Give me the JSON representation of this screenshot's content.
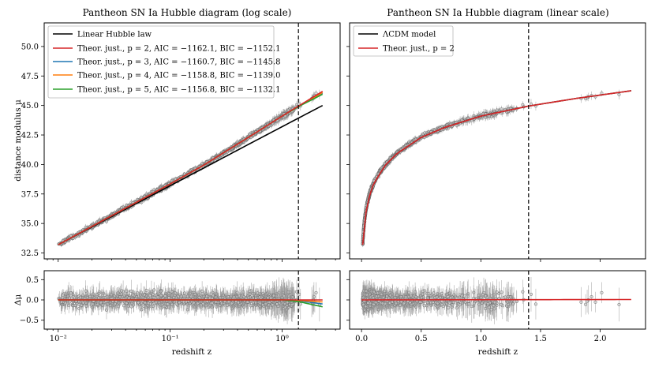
{
  "chart_data": [
    {
      "id": "log_main",
      "type": "scatter",
      "title": "Pantheon SN Ia Hubble diagram (log scale)",
      "xscale": "log",
      "xlim": [
        0.0075,
        3.3
      ],
      "ylim": [
        32.0,
        52.0
      ],
      "ylabel": "distance modulus μ",
      "yticks": [
        32.5,
        35.0,
        37.5,
        40.0,
        42.5,
        45.0,
        47.5,
        50.0
      ],
      "ytick_labels": [
        "32.5",
        "35.0",
        "37.5",
        "40.0",
        "42.5",
        "45.0",
        "47.5",
        "50.0"
      ],
      "vline_x": 1.4,
      "legend_position": "top-left",
      "legend": [
        {
          "label": "Linear Hubble law",
          "color": "#000000"
        },
        {
          "label": "Theor. just., p = 2, AIC = −1162.1, BIC = −1152.1",
          "color": "#d62728"
        },
        {
          "label": "Theor. just., p = 3, AIC = −1160.7, BIC = −1145.8",
          "color": "#1f77b4"
        },
        {
          "label": "Theor. just., p = 4, AIC = −1158.8, BIC = −1139.0",
          "color": "#ff7f0e"
        },
        {
          "label": "Theor. just., p = 5, AIC = −1156.8, BIC = −1132.1",
          "color": "#2ca02c"
        }
      ],
      "series": [
        {
          "name": "Linear Hubble law",
          "x": [
            0.01,
            0.02,
            0.05,
            0.1,
            0.2,
            0.5,
            1.0,
            1.4,
            2.3
          ],
          "y": [
            33.2,
            34.7,
            36.7,
            38.2,
            39.7,
            41.7,
            43.2,
            43.93,
            45.0
          ]
        },
        {
          "name": "p = 2",
          "x": [
            0.01,
            0.02,
            0.05,
            0.1,
            0.2,
            0.5,
            1.0,
            1.4,
            2.3
          ],
          "y": [
            33.2,
            34.75,
            36.8,
            38.35,
            39.95,
            42.3,
            44.1,
            44.95,
            46.2
          ]
        },
        {
          "name": "p = 3",
          "x": [
            0.01,
            0.02,
            0.05,
            0.1,
            0.2,
            0.5,
            1.0,
            1.4,
            2.3
          ],
          "y": [
            33.2,
            34.75,
            36.8,
            38.35,
            39.95,
            42.3,
            44.1,
            44.93,
            46.05
          ]
        },
        {
          "name": "p = 4",
          "x": [
            0.01,
            0.02,
            0.05,
            0.1,
            0.2,
            0.5,
            1.0,
            1.4,
            2.3
          ],
          "y": [
            33.2,
            34.75,
            36.8,
            38.35,
            39.95,
            42.3,
            44.1,
            44.94,
            46.1
          ]
        },
        {
          "name": "p = 5",
          "x": [
            0.01,
            0.02,
            0.05,
            0.1,
            0.2,
            0.5,
            1.0,
            1.4,
            2.3
          ],
          "y": [
            33.2,
            34.75,
            36.8,
            38.35,
            39.95,
            42.3,
            44.1,
            44.9,
            45.95
          ]
        }
      ],
      "data_points": {
        "z_min": 0.01,
        "z_max": 2.26,
        "count": 1048,
        "scatter_sigma": 0.15
      }
    },
    {
      "id": "log_resid",
      "type": "scatter",
      "xscale": "log",
      "xlim": [
        0.0075,
        3.3
      ],
      "ylim": [
        -0.72,
        0.72
      ],
      "xlabel": "redshift z",
      "ylabel": "Δμ",
      "yticks": [
        -0.5,
        0.0,
        0.5
      ],
      "ytick_labels": [
        "−0.5",
        "0.0",
        "0.5"
      ],
      "xticks": [
        0.01,
        0.1,
        1.0
      ],
      "xtick_labels": [
        "10⁻²",
        "10⁻¹",
        "10⁰"
      ],
      "vline_x": 1.4,
      "series": [
        {
          "name": "p = 2",
          "x": [
            0.01,
            1.0,
            2.3
          ],
          "y": [
            0.0,
            0.0,
            0.0
          ]
        },
        {
          "name": "p = 3",
          "x": [
            0.01,
            1.0,
            1.4,
            2.3
          ],
          "y": [
            0.0,
            0.0,
            -0.02,
            -0.1
          ]
        },
        {
          "name": "p = 4",
          "x": [
            0.01,
            1.0,
            1.4,
            2.3
          ],
          "y": [
            0.0,
            0.0,
            -0.01,
            -0.05
          ]
        },
        {
          "name": "p = 5",
          "x": [
            0.01,
            1.0,
            1.4,
            2.3
          ],
          "y": [
            0.0,
            0.0,
            -0.04,
            -0.17
          ]
        }
      ]
    },
    {
      "id": "lin_main",
      "type": "scatter",
      "title": "Pantheon SN Ia Hubble diagram (linear scale)",
      "xscale": "linear",
      "xlim": [
        -0.1,
        2.38
      ],
      "ylim": [
        32.0,
        52.0
      ],
      "vline_x": 1.4,
      "legend_position": "top-left",
      "legend": [
        {
          "label": "ΛCDM model",
          "color": "#000000"
        },
        {
          "label": "Theor. just., p = 2",
          "color": "#d62728"
        }
      ],
      "series": [
        {
          "name": "ΛCDM model",
          "x": [
            0.01,
            0.02,
            0.05,
            0.1,
            0.2,
            0.3,
            0.5,
            0.7,
            1.0,
            1.4,
            1.8,
            2.26
          ],
          "y": [
            33.2,
            34.75,
            36.8,
            38.35,
            39.95,
            40.95,
            42.3,
            43.15,
            44.1,
            44.95,
            45.6,
            46.25
          ]
        },
        {
          "name": "Theor. just., p = 2",
          "x": [
            0.01,
            0.02,
            0.05,
            0.1,
            0.2,
            0.3,
            0.5,
            0.7,
            1.0,
            1.4,
            1.8,
            2.26
          ],
          "y": [
            33.2,
            34.75,
            36.8,
            38.35,
            39.95,
            40.95,
            42.3,
            43.15,
            44.1,
            44.95,
            45.6,
            46.25
          ]
        }
      ]
    },
    {
      "id": "lin_resid",
      "type": "scatter",
      "xscale": "linear",
      "xlim": [
        -0.1,
        2.38
      ],
      "ylim": [
        -0.72,
        0.72
      ],
      "xlabel": "redshift z",
      "xticks": [
        0.0,
        0.5,
        1.0,
        1.5,
        2.0
      ],
      "xtick_labels": [
        "0.0",
        "0.5",
        "1.0",
        "1.5",
        "2.0"
      ],
      "vline_x": 1.4,
      "series": [
        {
          "name": "Theor. just., p = 2",
          "x": [
            0.0,
            2.26
          ],
          "y": [
            0.0,
            0.01
          ]
        }
      ]
    }
  ]
}
